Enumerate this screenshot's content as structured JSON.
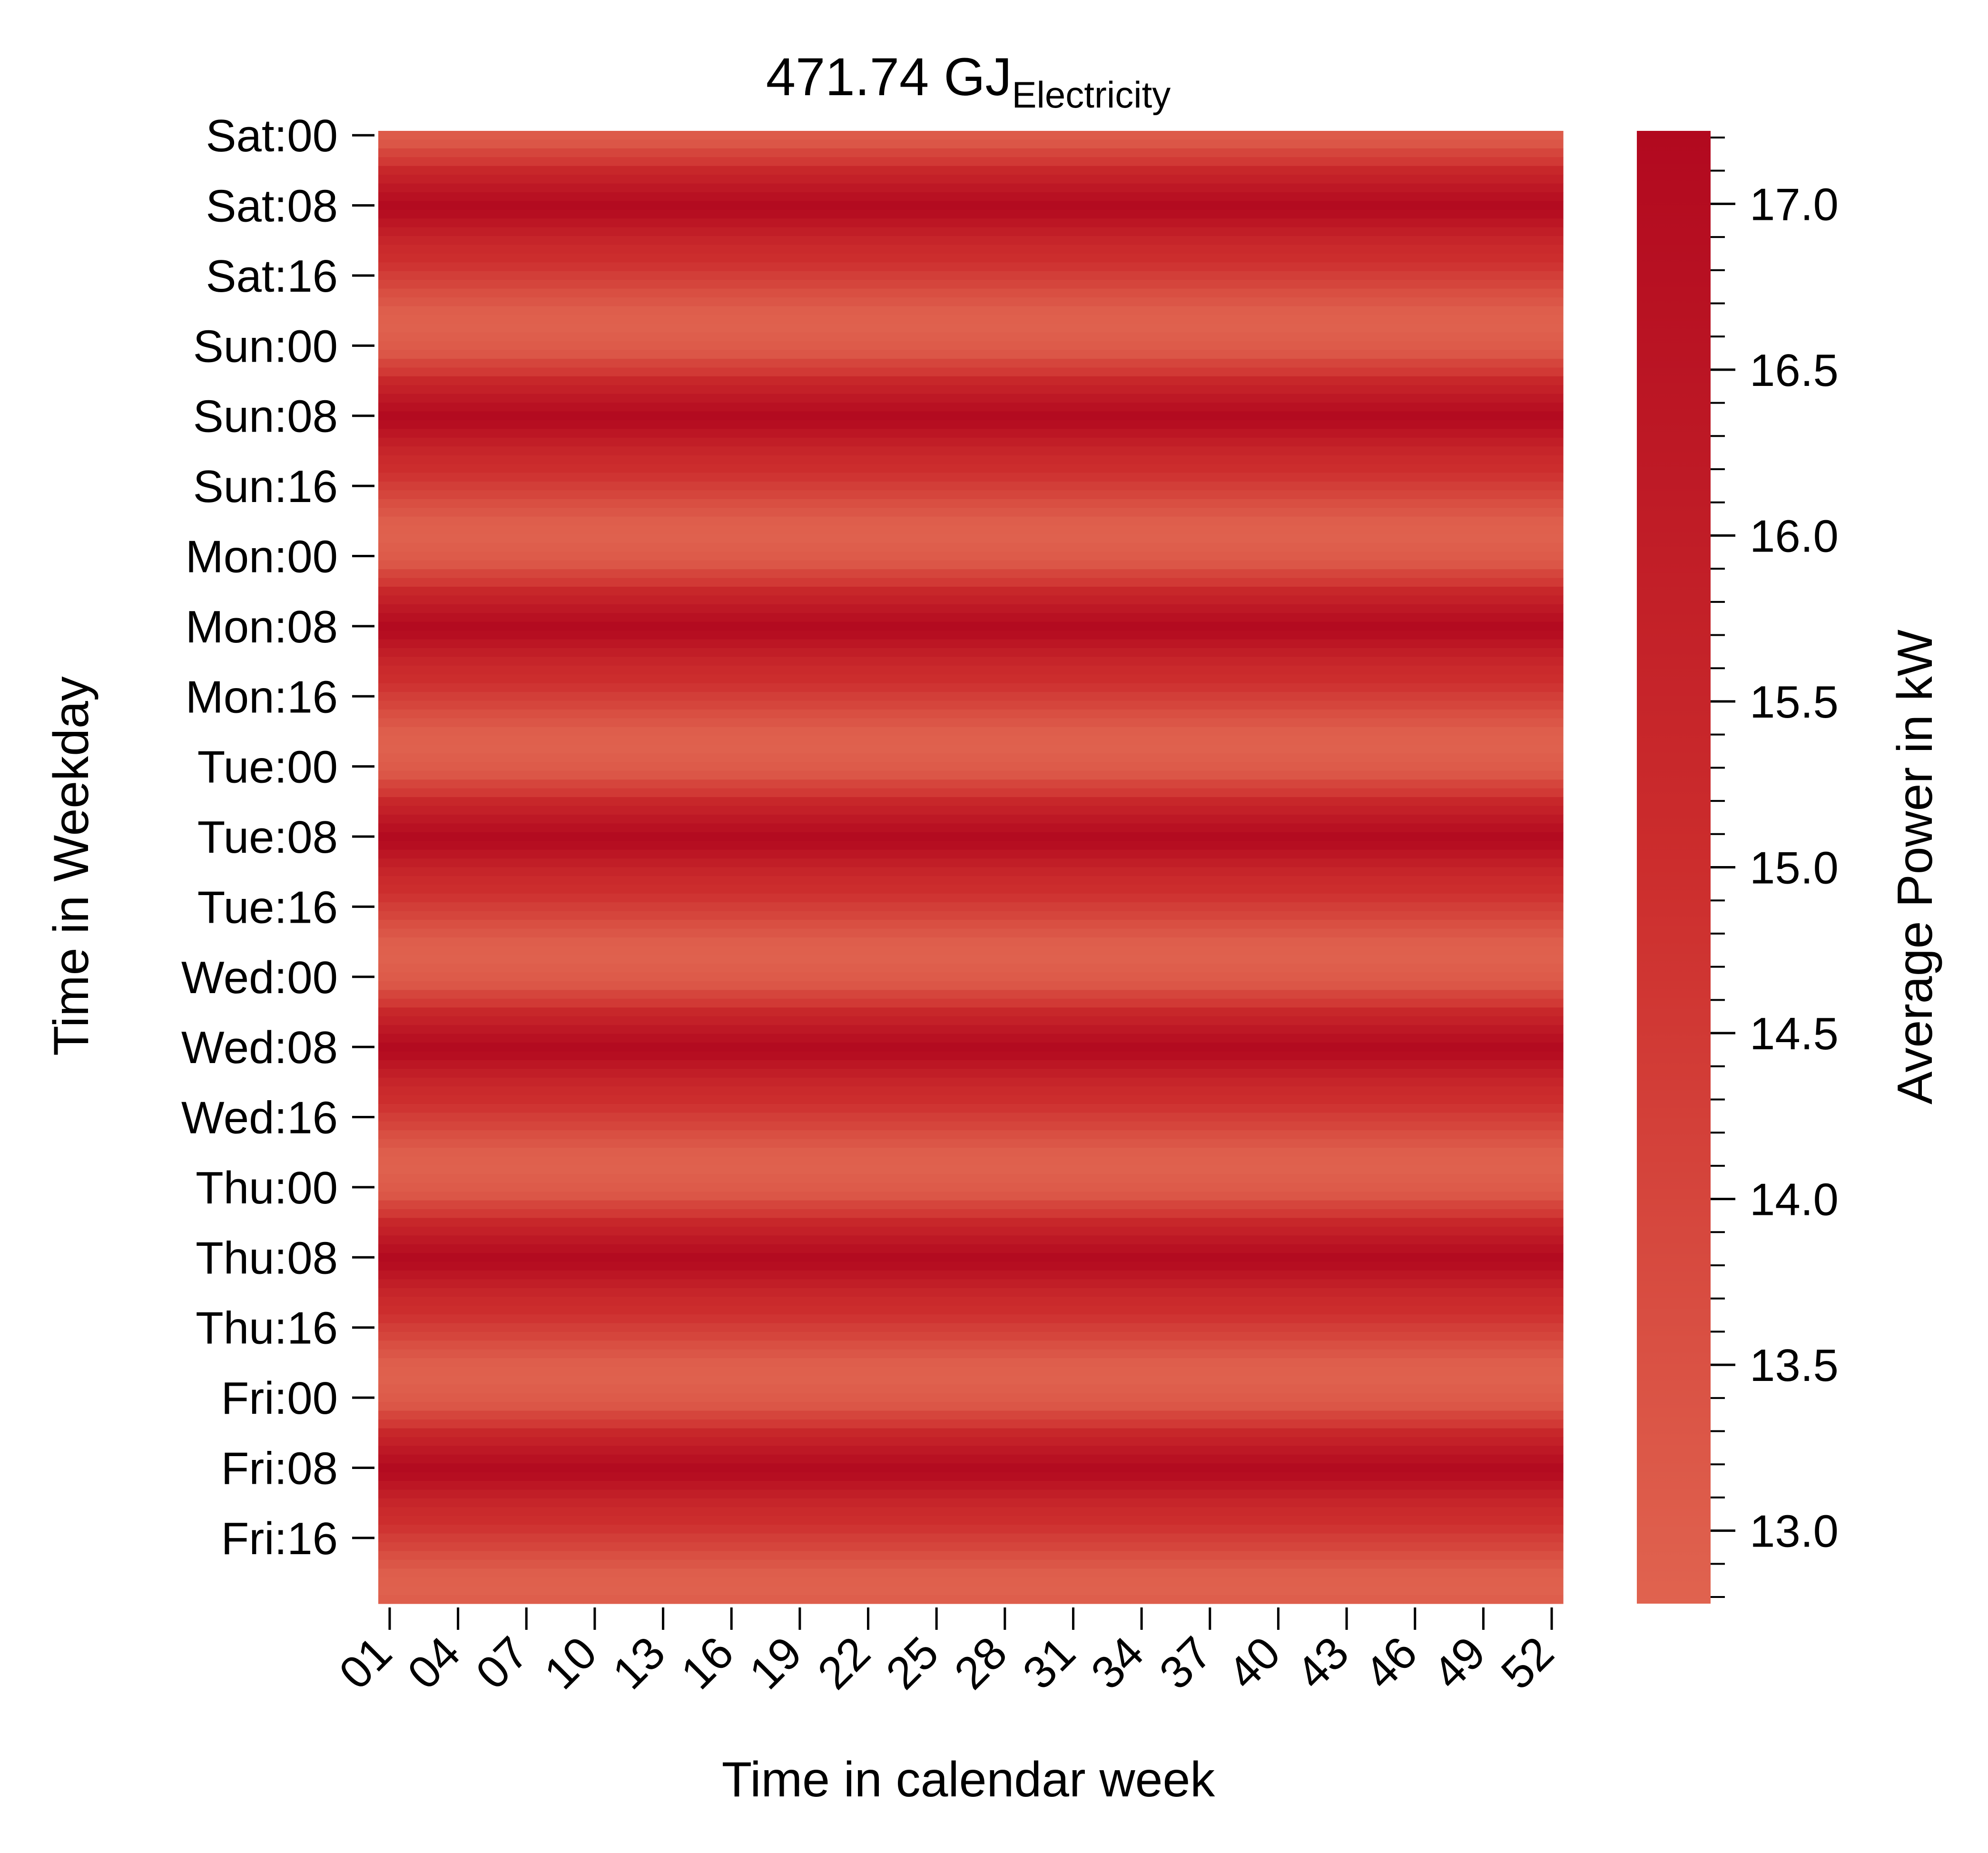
{
  "chart_data": {
    "type": "heatmap",
    "title": "471.74 GJ",
    "title_subscript": "Electricity",
    "xlabel": "Time in calendar week",
    "ylabel": "Time in Weekday",
    "colorbar_label": "Average Power in kW",
    "x_tick_labels": [
      "01",
      "04",
      "07",
      "10",
      "13",
      "16",
      "19",
      "22",
      "25",
      "28",
      "31",
      "34",
      "37",
      "40",
      "43",
      "46",
      "49",
      "52"
    ],
    "y_tick_labels": [
      "Sat:00",
      "Sat:08",
      "Sat:16",
      "Sun:00",
      "Sun:08",
      "Sun:16",
      "Mon:00",
      "Mon:08",
      "Mon:16",
      "Tue:00",
      "Tue:08",
      "Tue:16",
      "Wed:00",
      "Wed:08",
      "Wed:16",
      "Thu:00",
      "Thu:08",
      "Thu:16",
      "Fri:00",
      "Fri:08",
      "Fri:16"
    ],
    "colorbar_tick_labels": [
      "13.0",
      "13.5",
      "14.0",
      "14.5",
      "15.0",
      "15.5",
      "16.0",
      "16.5",
      "17.0"
    ],
    "colorbar_ticks": [
      13.0,
      13.5,
      14.0,
      14.5,
      15.0,
      15.5,
      16.0,
      16.5,
      17.0
    ],
    "zlim": [
      12.78,
      17.22
    ],
    "n_weeks": 52,
    "hours_per_week": 168,
    "hour_of_day_profile": [
      13.1,
      13.3,
      14.0,
      14.5,
      15.4,
      15.8,
      16.3,
      16.7,
      17.1,
      16.9,
      16.4,
      15.9,
      15.5,
      15.2,
      15.0,
      14.7,
      14.3,
      14.0,
      13.6,
      13.3,
      13.0,
      12.9,
      12.85,
      13.0
    ],
    "colors": {
      "low": "#e0634f",
      "mid": "#cc2d2d",
      "high": "#b2091f"
    }
  }
}
